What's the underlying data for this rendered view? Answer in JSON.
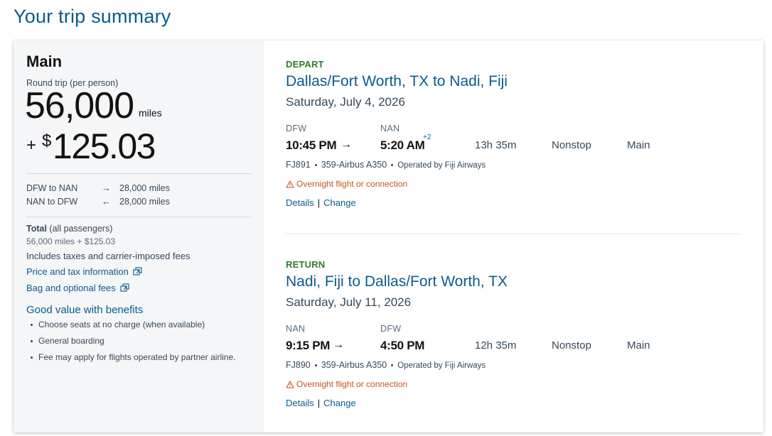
{
  "page": {
    "title": "Your trip summary"
  },
  "summary": {
    "fare_class": "Main",
    "trip_type": "Round trip (per person)",
    "miles": "56,000",
    "miles_unit": "miles",
    "cash_plus": "+",
    "cash_symbol": "$",
    "cash_amount": "125.03",
    "segments": [
      {
        "route": "DFW to NAN",
        "arrow": "→",
        "miles": "28,000 miles"
      },
      {
        "route": "NAN to DFW",
        "arrow": "←",
        "miles": "28,000 miles"
      }
    ],
    "total_label": "Total",
    "total_qualifier": "(all passengers)",
    "total_value": "56,000 miles + $125.03",
    "includes": "Includes taxes and carrier-imposed fees",
    "price_info_link": "Price and tax information",
    "bag_fees_link": "Bag and optional fees",
    "benefits_title": "Good value with benefits",
    "benefits": [
      "Choose seats at no charge (when available)",
      "General boarding",
      "Fee may apply for flights operated by partner airline."
    ]
  },
  "legs": [
    {
      "label": "DEPART",
      "route": "Dallas/Fort Worth, TX to Nadi, Fiji",
      "date": "Saturday, July 4, 2026",
      "origin_code": "DFW",
      "dest_code": "NAN",
      "depart_time": "10:45 PM",
      "arrow": "→",
      "arrive_time": "5:20 AM",
      "day_offset": "+2",
      "duration": "13h 35m",
      "stops": "Nonstop",
      "cabin": "Main",
      "flight_number": "FJ891",
      "aircraft": "359-Airbus A350",
      "operator": "Operated by Fiji Airways",
      "warning": "Overnight flight or connection",
      "details_label": "Details",
      "change_label": "Change"
    },
    {
      "label": "RETURN",
      "route": "Nadi, Fiji to Dallas/Fort Worth, TX",
      "date": "Saturday, July 11, 2026",
      "origin_code": "NAN",
      "dest_code": "DFW",
      "depart_time": "9:15 PM",
      "arrow": "→",
      "arrive_time": "4:50 PM",
      "day_offset": "",
      "duration": "12h 35m",
      "stops": "Nonstop",
      "cabin": "Main",
      "flight_number": "FJ890",
      "aircraft": "359-Airbus A350",
      "operator": "Operated by Fiji Airways",
      "warning": "Overnight flight or connection",
      "details_label": "Details",
      "change_label": "Change"
    }
  ],
  "colors": {
    "brand_blue": "#0c5a8c",
    "leg_label_green": "#2f7d32",
    "warning_orange": "#c2571a",
    "panel_gray": "#f4f6f8"
  }
}
